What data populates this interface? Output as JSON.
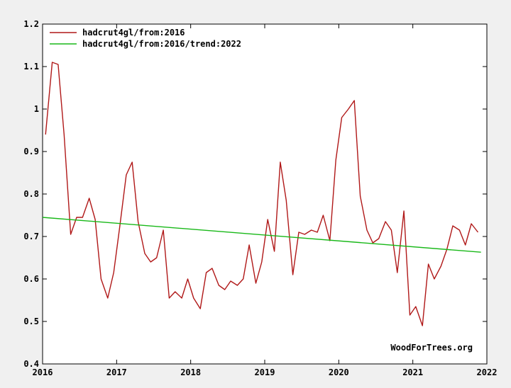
{
  "chart_data": {
    "type": "line",
    "title": "",
    "xlabel": "",
    "ylabel": "",
    "xlim": [
      2016,
      2022
    ],
    "ylim": [
      0.4,
      1.2
    ],
    "x_ticks": [
      "2016",
      "2017",
      "2018",
      "2019",
      "2020",
      "2021",
      "2022"
    ],
    "y_ticks": [
      "0.4",
      "0.5",
      "0.6",
      "0.7",
      "0.8",
      "0.9",
      "1",
      "1.1",
      "1.2"
    ],
    "grid": false,
    "legend_position": "top-left",
    "series": [
      {
        "name": "hadcrut4gl/from:2016",
        "color": "#b01818",
        "x": [
          2016.04,
          2016.13,
          2016.21,
          2016.29,
          2016.38,
          2016.46,
          2016.54,
          2016.63,
          2016.71,
          2016.79,
          2016.88,
          2016.96,
          2017.04,
          2017.13,
          2017.21,
          2017.29,
          2017.38,
          2017.46,
          2017.54,
          2017.63,
          2017.71,
          2017.79,
          2017.88,
          2017.96,
          2018.04,
          2018.13,
          2018.21,
          2018.29,
          2018.38,
          2018.46,
          2018.54,
          2018.63,
          2018.71,
          2018.79,
          2018.88,
          2018.96,
          2019.04,
          2019.13,
          2019.21,
          2019.29,
          2019.38,
          2019.46,
          2019.54,
          2019.63,
          2019.71,
          2019.79,
          2019.88,
          2019.96,
          2020.04,
          2020.13,
          2020.21,
          2020.29,
          2020.38,
          2020.46,
          2020.54,
          2020.63,
          2020.71,
          2020.79,
          2020.88,
          2020.96,
          2021.04,
          2021.13,
          2021.21,
          2021.29,
          2021.38,
          2021.46,
          2021.54,
          2021.63,
          2021.71,
          2021.79,
          2021.88
        ],
        "values": [
          0.94,
          1.11,
          1.105,
          0.94,
          0.705,
          0.745,
          0.745,
          0.79,
          0.74,
          0.6,
          0.555,
          0.615,
          0.72,
          0.845,
          0.875,
          0.735,
          0.66,
          0.64,
          0.65,
          0.715,
          0.555,
          0.57,
          0.555,
          0.6,
          0.555,
          0.53,
          0.615,
          0.625,
          0.585,
          0.575,
          0.595,
          0.585,
          0.6,
          0.68,
          0.59,
          0.64,
          0.74,
          0.665,
          0.875,
          0.785,
          0.61,
          0.71,
          0.705,
          0.715,
          0.71,
          0.75,
          0.69,
          0.88,
          0.98,
          1.0,
          1.02,
          0.795,
          0.715,
          0.685,
          0.695,
          0.735,
          0.715,
          0.615,
          0.76,
          0.515,
          0.535,
          0.49,
          0.635,
          0.6,
          0.63,
          0.67,
          0.725,
          0.715,
          0.68,
          0.73,
          0.71
        ]
      },
      {
        "name": "hadcrut4gl/from:2016/trend:2022",
        "color": "#18b818",
        "x": [
          2016.0,
          2021.92
        ],
        "values": [
          0.745,
          0.663
        ]
      }
    ]
  },
  "watermark": "WoodForTrees.org"
}
